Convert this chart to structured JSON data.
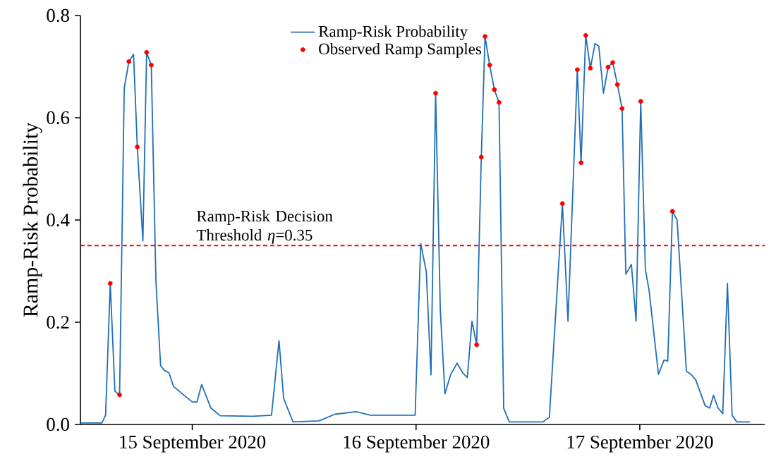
{
  "chart_data": {
    "type": "line",
    "ylabel": "Ramp-Risk Probability",
    "xlim": [
      "2020-09-14T12:00",
      "2020-09-17T13:24"
    ],
    "ylim": [
      0,
      0.8
    ],
    "xticks": [
      {
        "value": "2020-09-15",
        "label": "15 September 2020"
      },
      {
        "value": "2020-09-16",
        "label": "16 September 2020"
      },
      {
        "value": "2020-09-17",
        "label": "17 September 2020"
      }
    ],
    "yticks": [
      {
        "value": 0,
        "label": "0.0"
      },
      {
        "value": 0.2,
        "label": "0.2"
      },
      {
        "value": 0.4,
        "label": "0.4"
      },
      {
        "value": 0.6,
        "label": "0.6"
      },
      {
        "value": 0.8,
        "label": "0.8"
      }
    ],
    "legend": "top",
    "grid": false,
    "series": [
      {
        "name": "Ramp-Risk Probability",
        "color": "#1f6fb8",
        "marker": "none",
        "line_style": "solid",
        "x": [
          "2020-09-14T12:00",
          "2020-09-14T14:18",
          "2020-09-14T14:42",
          "2020-09-14T15:12",
          "2020-09-14T15:42",
          "2020-09-14T16:12",
          "2020-09-14T16:42",
          "2020-09-14T17:12",
          "2020-09-14T17:42",
          "2020-09-14T18:06",
          "2020-09-14T18:42",
          "2020-09-14T19:06",
          "2020-09-14T19:36",
          "2020-09-14T20:06",
          "2020-09-14T20:36",
          "2020-09-14T21:00",
          "2020-09-14T21:30",
          "2020-09-14T22:00",
          "2020-09-15T00:00",
          "2020-09-15T00:30",
          "2020-09-15T01:00",
          "2020-09-15T02:00",
          "2020-09-15T03:00",
          "2020-09-15T06:30",
          "2020-09-15T08:30",
          "2020-09-15T09:18",
          "2020-09-15T09:48",
          "2020-09-15T10:48",
          "2020-09-15T13:36",
          "2020-09-15T15:18",
          "2020-09-15T17:36",
          "2020-09-15T19:06",
          "2020-09-15T23:54",
          "2020-09-16T00:30",
          "2020-09-16T01:06",
          "2020-09-16T01:36",
          "2020-09-16T02:06",
          "2020-09-16T02:36",
          "2020-09-16T03:06",
          "2020-09-16T03:42",
          "2020-09-16T04:24",
          "2020-09-16T05:00",
          "2020-09-16T05:30",
          "2020-09-16T06:00",
          "2020-09-16T06:30",
          "2020-09-16T07:00",
          "2020-09-16T07:24",
          "2020-09-16T07:54",
          "2020-09-16T08:24",
          "2020-09-16T08:54",
          "2020-09-16T09:24",
          "2020-09-16T10:00",
          "2020-09-16T13:36",
          "2020-09-16T14:18",
          "2020-09-16T15:42",
          "2020-09-16T16:18",
          "2020-09-16T17:18",
          "2020-09-16T17:42",
          "2020-09-16T18:12",
          "2020-09-16T18:42",
          "2020-09-16T19:12",
          "2020-09-16T19:36",
          "2020-09-16T20:06",
          "2020-09-16T20:36",
          "2020-09-16T21:06",
          "2020-09-16T21:36",
          "2020-09-16T22:06",
          "2020-09-16T22:30",
          "2020-09-16T23:06",
          "2020-09-16T23:36",
          "2020-09-17T00:06",
          "2020-09-17T00:36",
          "2020-09-17T01:00",
          "2020-09-17T02:00",
          "2020-09-17T02:36",
          "2020-09-17T03:00",
          "2020-09-17T03:30",
          "2020-09-17T04:00",
          "2020-09-17T05:00",
          "2020-09-17T05:30",
          "2020-09-17T06:00",
          "2020-09-17T07:00",
          "2020-09-17T07:30",
          "2020-09-17T07:54",
          "2020-09-17T08:24",
          "2020-09-17T08:54",
          "2020-09-17T09:24",
          "2020-09-17T09:54",
          "2020-09-17T10:24",
          "2020-09-17T11:48"
        ],
        "values": [
          0.003,
          0.003,
          0.018,
          0.276,
          0.065,
          0.058,
          0.658,
          0.71,
          0.724,
          0.543,
          0.359,
          0.728,
          0.703,
          0.28,
          0.115,
          0.106,
          0.101,
          0.074,
          0.044,
          0.044,
          0.078,
          0.032,
          0.017,
          0.016,
          0.018,
          0.164,
          0.051,
          0.005,
          0.007,
          0.02,
          0.025,
          0.018,
          0.018,
          0.354,
          0.299,
          0.097,
          0.648,
          0.225,
          0.06,
          0.097,
          0.12,
          0.101,
          0.092,
          0.202,
          0.156,
          0.523,
          0.759,
          0.703,
          0.655,
          0.63,
          0.032,
          0.005,
          0.005,
          0.014,
          0.432,
          0.202,
          0.694,
          0.512,
          0.761,
          0.697,
          0.745,
          0.74,
          0.648,
          0.699,
          0.708,
          0.665,
          0.618,
          0.294,
          0.313,
          0.202,
          0.632,
          0.303,
          0.262,
          0.098,
          0.126,
          0.124,
          0.417,
          0.4,
          0.104,
          0.098,
          0.087,
          0.037,
          0.032,
          0.057,
          0.032,
          0.021,
          0.276,
          0.018,
          0.005,
          0.005
        ]
      },
      {
        "name": "Observed Ramp Samples",
        "type": "scatter",
        "color": "#ff0000",
        "marker": "circle",
        "x": [
          "2020-09-14T15:12",
          "2020-09-14T16:12",
          "2020-09-14T17:12",
          "2020-09-14T18:06",
          "2020-09-14T19:06",
          "2020-09-14T19:36",
          "2020-09-16T02:06",
          "2020-09-16T06:30",
          "2020-09-16T07:00",
          "2020-09-16T07:24",
          "2020-09-16T07:54",
          "2020-09-16T08:24",
          "2020-09-16T08:54",
          "2020-09-16T15:42",
          "2020-09-16T17:18",
          "2020-09-16T17:42",
          "2020-09-16T18:12",
          "2020-09-16T18:42",
          "2020-09-16T20:36",
          "2020-09-16T21:06",
          "2020-09-16T21:36",
          "2020-09-16T22:06",
          "2020-09-17T00:06",
          "2020-09-17T03:30"
        ],
        "values": [
          0.276,
          0.058,
          0.71,
          0.543,
          0.728,
          0.703,
          0.648,
          0.156,
          0.523,
          0.759,
          0.703,
          0.655,
          0.63,
          0.432,
          0.694,
          0.512,
          0.761,
          0.697,
          0.699,
          0.708,
          0.665,
          0.618,
          0.632,
          0.417
        ]
      }
    ],
    "ref_lines": [
      {
        "axis": "y",
        "value": 0.35,
        "label": "Ramp-Risk Decision Threshold *η*=0.35",
        "color": "#ff0000",
        "line_style": "dashed"
      }
    ]
  }
}
